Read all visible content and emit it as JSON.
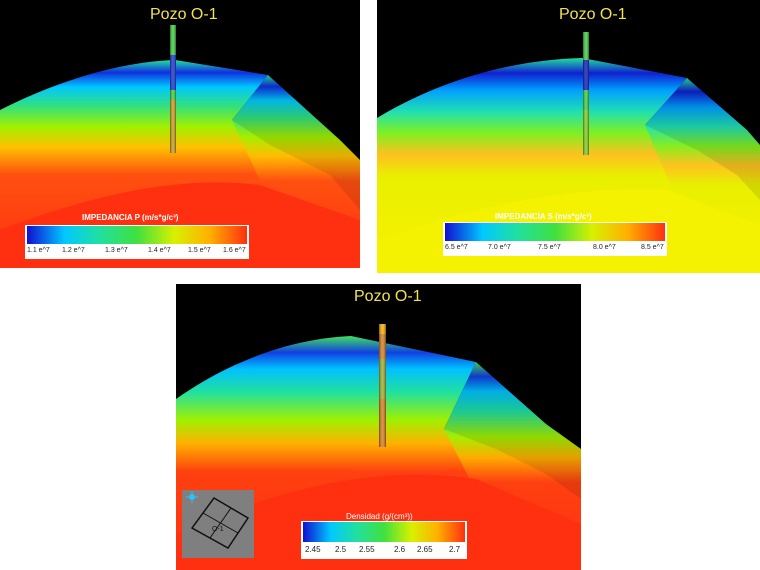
{
  "panels": [
    {
      "well_label": "Pozo O-1",
      "colorbar": {
        "title": "IMPEDANCIA P (m/s*g/c³)",
        "ticks": [
          "1.1 e^7",
          "1.2 e^7",
          "1.3 e^7",
          "1.4 e^7",
          "1.5 e^7",
          "1.6 e^7"
        ]
      }
    },
    {
      "well_label": "Pozo O-1",
      "colorbar": {
        "title": "IMPEDANCIA S (m/s*g/c³)",
        "ticks": [
          "6.5 e^7",
          "7.0 e^7",
          "7.5 e^7",
          "8.0 e^7",
          "8.5 e^7"
        ]
      }
    },
    {
      "well_label": "Pozo O-1",
      "colorbar": {
        "title": "Densidad  (g/(cm³))",
        "ticks": [
          "2.45",
          "2.5",
          "2.55",
          "2.6",
          "2.65",
          "2.7"
        ]
      }
    }
  ],
  "colors": {
    "background": "#000000",
    "well_label": "#f2e34a",
    "colormap": [
      "#1010d0",
      "#00c8ff",
      "#20e0a0",
      "#40e040",
      "#d8f000",
      "#ffb000",
      "#ff3010"
    ]
  },
  "orientation_inset": {
    "icon": "map-orientation-icon",
    "label": "O-1"
  }
}
